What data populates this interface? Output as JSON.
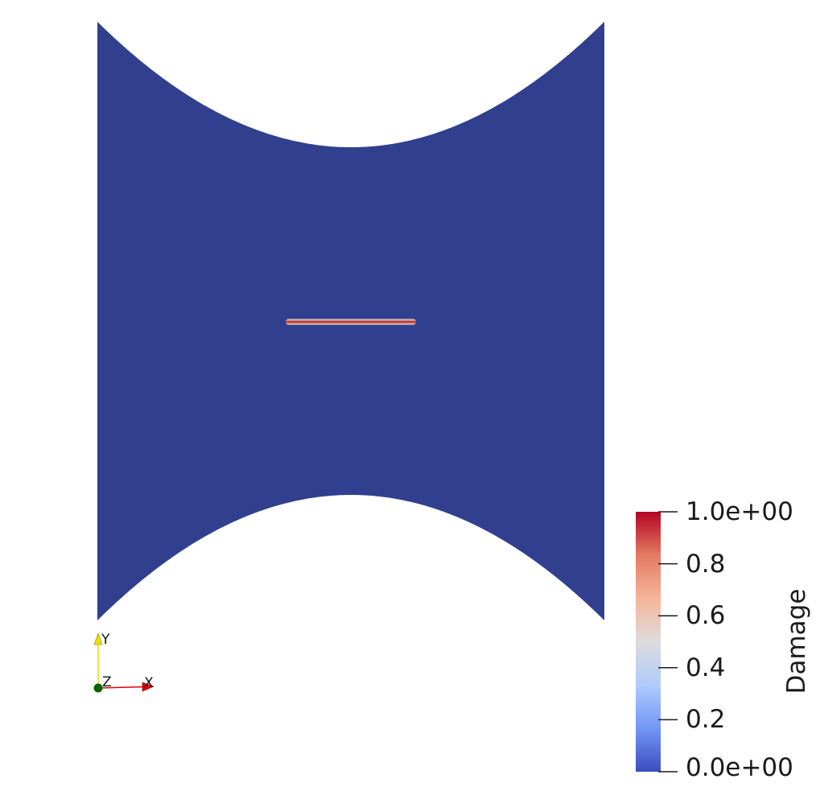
{
  "colorbar": {
    "title": "Damage",
    "ticks": [
      {
        "value": 1.0,
        "label": "1.0e+00"
      },
      {
        "value": 0.8,
        "label": "0.8"
      },
      {
        "value": 0.6,
        "label": "0.6"
      },
      {
        "value": 0.4,
        "label": "0.4"
      },
      {
        "value": 0.2,
        "label": "0.2"
      },
      {
        "value": 0.0,
        "label": "0.0e+00"
      }
    ],
    "range": [
      0.0,
      1.0
    ],
    "colormap": [
      "#3b4cc0",
      "#7396f5",
      "#b0cbfc",
      "#dddcdc",
      "#f6b59a",
      "#e27b62",
      "#b40426"
    ]
  },
  "specimen": {
    "fill_color": "#30408f",
    "crack_damage": 1.0
  },
  "orientation_axes": {
    "x_label": "X",
    "y_label": "Y",
    "z_label": "Z",
    "x_color": "#e00000",
    "y_color": "#e8e000",
    "z_color": "#006400"
  }
}
